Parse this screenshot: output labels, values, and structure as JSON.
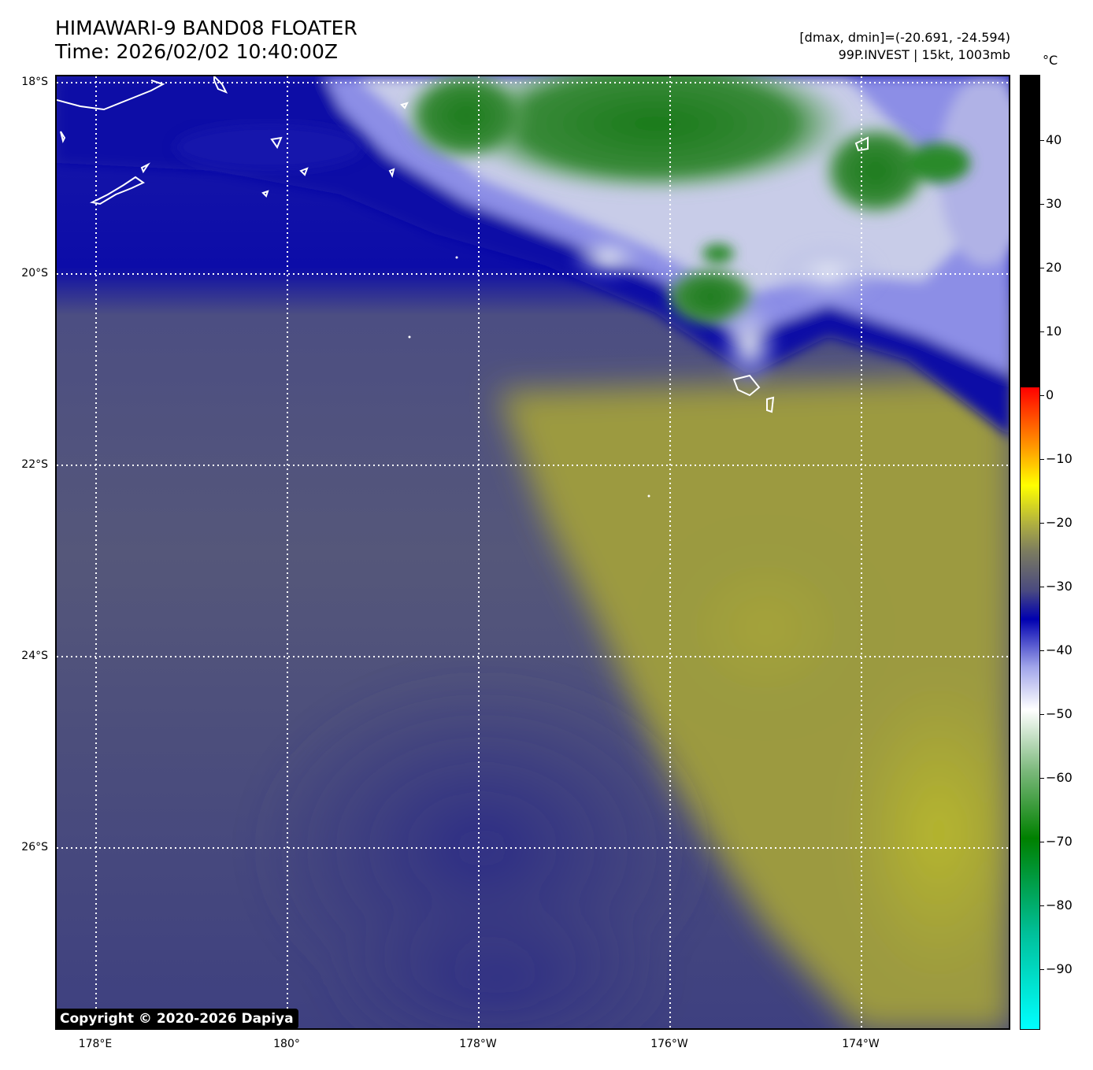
{
  "title": {
    "line1": "HIMAWARI-9 BAND08 FLOATER",
    "line2": "Time: 2026/02/02 10:40:00Z"
  },
  "info": {
    "line1": "[dmax, dmin]=(-20.691, -24.594)",
    "line2": "99P.INVEST | 15kt, 1003mb"
  },
  "map": {
    "lat_labels": [
      "18°S",
      "20°S",
      "22°S",
      "24°S",
      "26°S"
    ],
    "lon_labels": [
      "178°E",
      "180°",
      "178°W",
      "176°W",
      "174°W"
    ],
    "graticule_style": "dotted white",
    "coastline_color": "#ffffff"
  },
  "colorbar": {
    "unit": "°C",
    "tick_labels": [
      "40",
      "30",
      "20",
      "10",
      "0",
      "−10",
      "−20",
      "−30",
      "−40",
      "−50",
      "−60",
      "−70",
      "−80",
      "−90"
    ],
    "stops": [
      "#00ffff",
      "#008000",
      "#ffffff",
      "#0000b0",
      "#808080",
      "#ffff00",
      "#ff0000",
      "#000000"
    ]
  },
  "copyright": "Copyright © 2020-2026 Dapiya"
}
